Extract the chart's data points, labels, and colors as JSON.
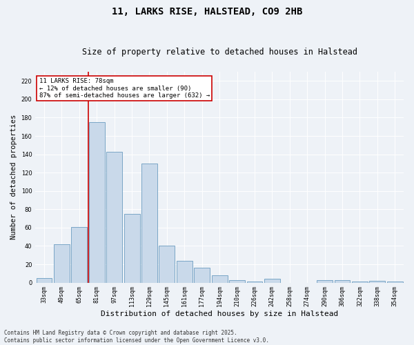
{
  "title": "11, LARKS RISE, HALSTEAD, CO9 2HB",
  "subtitle": "Size of property relative to detached houses in Halstead",
  "xlabel": "Distribution of detached houses by size in Halstead",
  "ylabel": "Number of detached properties",
  "categories": [
    "33sqm",
    "49sqm",
    "65sqm",
    "81sqm",
    "97sqm",
    "113sqm",
    "129sqm",
    "145sqm",
    "161sqm",
    "177sqm",
    "194sqm",
    "210sqm",
    "226sqm",
    "242sqm",
    "258sqm",
    "274sqm",
    "290sqm",
    "306sqm",
    "322sqm",
    "338sqm",
    "354sqm"
  ],
  "values": [
    5,
    42,
    61,
    175,
    143,
    75,
    130,
    40,
    24,
    16,
    8,
    3,
    1,
    4,
    0,
    0,
    3,
    3,
    1,
    2,
    1
  ],
  "bar_color": "#c9d9ea",
  "bar_edge_color": "#6a9cbf",
  "vline_x": 2.5,
  "vline_color": "#cc0000",
  "annotation_text": "11 LARKS RISE: 78sqm\n← 12% of detached houses are smaller (90)\n87% of semi-detached houses are larger (632) →",
  "annotation_box_color": "#ffffff",
  "annotation_box_edge_color": "#cc0000",
  "ylim": [
    0,
    230
  ],
  "yticks": [
    0,
    20,
    40,
    60,
    80,
    100,
    120,
    140,
    160,
    180,
    200,
    220
  ],
  "footer": "Contains HM Land Registry data © Crown copyright and database right 2025.\nContains public sector information licensed under the Open Government Licence v3.0.",
  "bg_color": "#eef2f7",
  "grid_color": "#ffffff",
  "title_fontsize": 10,
  "subtitle_fontsize": 8.5,
  "ylabel_fontsize": 7.5,
  "xlabel_fontsize": 8,
  "tick_fontsize": 6,
  "footer_fontsize": 5.5,
  "annotation_fontsize": 6.5
}
